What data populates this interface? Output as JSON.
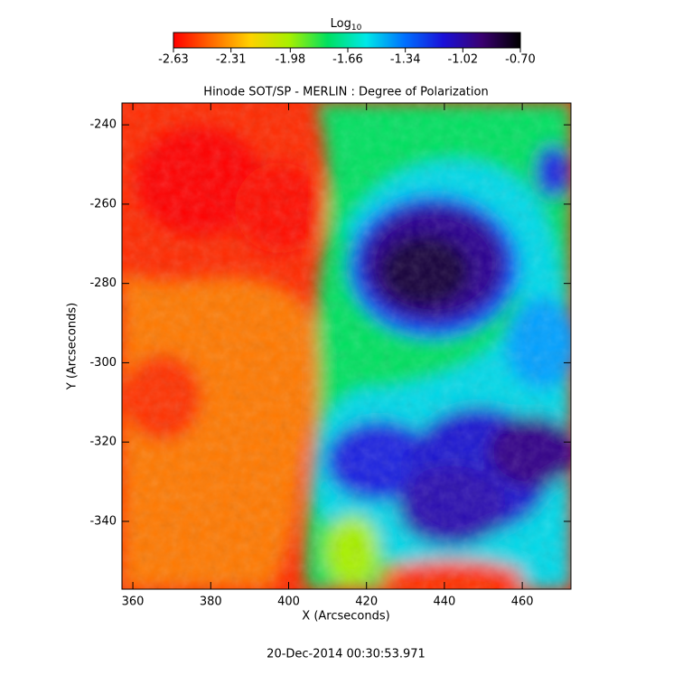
{
  "chart_data": {
    "type": "heatmap",
    "title": "Hinode SOT/SP - MERLIN : Degree of Polarization",
    "xlabel": "X (Arcseconds)",
    "ylabel": "Y (Arcseconds)",
    "footer": "20-Dec-2014 00:30:53.971",
    "colorbar_label": {
      "text": "Log",
      "subscript": "10"
    },
    "clim": [
      -2.63,
      -0.7
    ],
    "cticks": [
      -2.63,
      -2.31,
      -1.98,
      -1.66,
      -1.34,
      -1.02,
      {
        "value": -0.7,
        "label": "-0.70"
      }
    ],
    "colormap": [
      "#ff0000",
      "#ff6a00",
      "#ffd200",
      "#a8f000",
      "#00e060",
      "#00e8e8",
      "#0070ff",
      "#1a10d8",
      "#3a0070",
      "#000000"
    ],
    "xlim": [
      357.2,
      472.5
    ],
    "ylim": [
      -357.1,
      -234.5
    ],
    "xticks": [
      360,
      380,
      400,
      420,
      440,
      460
    ],
    "yticks": [
      -340,
      -320,
      -300,
      -280,
      -260,
      -240
    ]
  }
}
